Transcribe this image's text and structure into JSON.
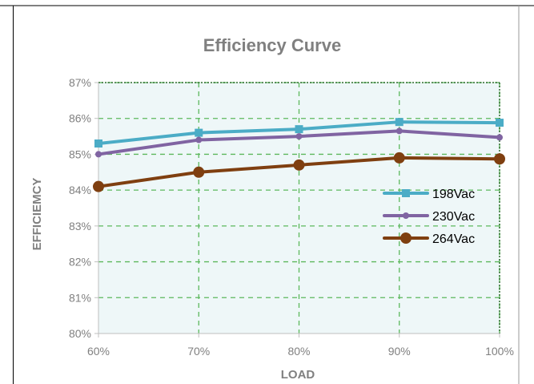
{
  "chart_data": {
    "type": "line",
    "title": "Efficiency Curve",
    "xlabel": "LOAD",
    "ylabel": "EFFICIEMCY",
    "categories": [
      "60%",
      "70%",
      "80%",
      "90%",
      "100%"
    ],
    "x": [
      60,
      70,
      80,
      90,
      100
    ],
    "ylim": [
      80,
      87
    ],
    "y_ticks": [
      "80%",
      "81%",
      "82%",
      "83%",
      "84%",
      "85%",
      "86%",
      "87%"
    ],
    "grid": true,
    "legend_position": "right",
    "series": [
      {
        "name": "198Vac",
        "values": [
          85.3,
          85.6,
          85.7,
          85.9,
          85.88
        ],
        "color": "#4bacc6",
        "marker": "square"
      },
      {
        "name": "230Vac",
        "values": [
          85.0,
          85.4,
          85.5,
          85.65,
          85.47
        ],
        "color": "#8064a2",
        "marker": "circle"
      },
      {
        "name": "264Vac",
        "values": [
          84.1,
          84.5,
          84.7,
          84.9,
          84.87
        ],
        "color": "#7f3f10",
        "marker": "circle"
      }
    ],
    "colors": {
      "grid": "#5cb85c",
      "plot_bg": "#eef7f8",
      "title": "#808080",
      "axis_text": "#808080"
    }
  }
}
